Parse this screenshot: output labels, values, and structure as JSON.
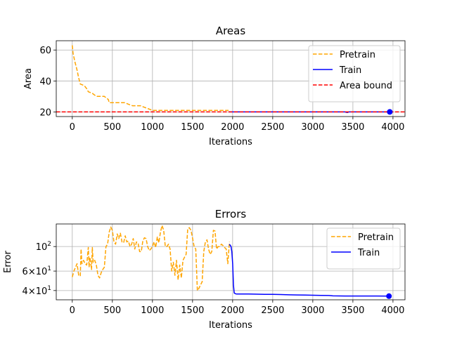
{
  "chart_data": [
    {
      "type": "line",
      "title": "Areas",
      "xlabel": "Iterations",
      "ylabel": "Area",
      "xlim": [
        -200,
        4150
      ],
      "ylim": [
        17,
        66
      ],
      "xticks": [
        0,
        500,
        1000,
        1500,
        2000,
        2500,
        3000,
        3500,
        4000
      ],
      "xtick_labels": [
        "0",
        "500",
        "1000",
        "1500",
        "2000",
        "2500",
        "3000",
        "3500",
        "4000"
      ],
      "yticks": [
        20,
        40,
        60
      ],
      "ytick_labels": [
        "20",
        "40",
        "60"
      ],
      "grid": true,
      "legend_position": "top-right",
      "series": [
        {
          "name": "Pretrain",
          "color": "#ffa500",
          "style": "dashed",
          "x": [
            0,
            10,
            30,
            60,
            80,
            100,
            150,
            180,
            200,
            250,
            300,
            350,
            400,
            450,
            460,
            500,
            550,
            600,
            650,
            700,
            750,
            800,
            850,
            900,
            950,
            1000,
            1100,
            1200,
            1400,
            1600,
            1800,
            1950
          ],
          "y": [
            63,
            58,
            53,
            47,
            42,
            38,
            37,
            35,
            33,
            32,
            30,
            30,
            30,
            28,
            26,
            26,
            26,
            26,
            26,
            25,
            24,
            24,
            24,
            23,
            22,
            21,
            21,
            21,
            21,
            21,
            21,
            21
          ]
        },
        {
          "name": "Train",
          "color": "#0000ff",
          "style": "solid",
          "x": [
            1950,
            2500,
            3000,
            3400,
            3430,
            3450,
            3500,
            3960
          ],
          "y": [
            20,
            20,
            20,
            20,
            19.6,
            20,
            20,
            20
          ],
          "end_marker": true
        },
        {
          "name": "Area bound",
          "color": "#ff0000",
          "style": "dashed",
          "hline": 20
        }
      ]
    },
    {
      "type": "line",
      "title": "Errors",
      "xlabel": "Iterations",
      "ylabel": "Error",
      "yscale": "log",
      "xlim": [
        -200,
        4150
      ],
      "ylim": [
        33,
        160
      ],
      "xticks": [
        0,
        500,
        1000,
        1500,
        2000,
        2500,
        3000,
        3500,
        4000
      ],
      "xtick_labels": [
        "0",
        "500",
        "1000",
        "1500",
        "2000",
        "2500",
        "3000",
        "3500",
        "4000"
      ],
      "yticks": [
        40,
        60,
        100
      ],
      "ytick_labels": [
        {
          "base": "4×10",
          "exp": "1"
        },
        {
          "base": "6×10",
          "exp": "1"
        },
        {
          "base": "10",
          "exp": "2"
        }
      ],
      "grid": true,
      "legend_position": "top-right",
      "series": [
        {
          "name": "Pretrain",
          "color": "#ffa500",
          "style": "dashed",
          "x": [
            0,
            20,
            40,
            60,
            80,
            100,
            110,
            120,
            140,
            160,
            180,
            200,
            210,
            220,
            240,
            250,
            260,
            280,
            300,
            320,
            340,
            360,
            380,
            400,
            420,
            440,
            460,
            480,
            500,
            520,
            540,
            560,
            580,
            600,
            620,
            640,
            660,
            680,
            700,
            720,
            740,
            760,
            780,
            800,
            820,
            840,
            860,
            880,
            900,
            920,
            940,
            960,
            980,
            1000,
            1020,
            1040,
            1060,
            1080,
            1100,
            1120,
            1140,
            1160,
            1180,
            1200,
            1220,
            1240,
            1260,
            1280,
            1300,
            1320,
            1340,
            1360,
            1380,
            1400,
            1420,
            1440,
            1460,
            1480,
            1500,
            1520,
            1540,
            1560,
            1580,
            1600,
            1620,
            1640,
            1660,
            1680,
            1700,
            1720,
            1740,
            1760,
            1780,
            1800,
            1820,
            1840,
            1860,
            1880,
            1900,
            1920,
            1940,
            1960
          ],
          "y": [
            53,
            60,
            65,
            70,
            55,
            54,
            95,
            70,
            75,
            70,
            68,
            98,
            65,
            80,
            62,
            98,
            72,
            75,
            68,
            55,
            52,
            58,
            62,
            65,
            100,
            105,
            135,
            150,
            140,
            110,
            105,
            130,
            118,
            132,
            110,
            108,
            125,
            110,
            112,
            100,
            105,
            118,
            95,
            110,
            108,
            90,
            90,
            112,
            120,
            118,
            100,
            92,
            95,
            100,
            110,
            98,
            122,
            108,
            135,
            155,
            140,
            100,
            100,
            105,
            95,
            60,
            72,
            55,
            75,
            50,
            68,
            52,
            75,
            80,
            85,
            145,
            148,
            140,
            120,
            100,
            95,
            40,
            42,
            45,
            48,
            90,
            110,
            115,
            95,
            85,
            90,
            140,
            138,
            95,
            100,
            100,
            105,
            102,
            98,
            95,
            70,
            110
          ]
        },
        {
          "name": "Train",
          "color": "#0000ff",
          "style": "solid",
          "x": [
            1960,
            1980,
            1990,
            2000,
            2010,
            2020,
            2040,
            2060,
            2100,
            2200,
            2300,
            2400,
            2500,
            2600,
            2700,
            2800,
            2900,
            3000,
            3100,
            3200,
            3250,
            3400,
            3600,
            3800,
            3950
          ],
          "y": [
            105,
            100,
            90,
            70,
            45,
            38,
            37.3,
            37.2,
            37.2,
            37.2,
            37.1,
            37,
            37,
            36.8,
            36.6,
            36.5,
            36.4,
            36.3,
            36.2,
            36.1,
            35.8,
            35.7,
            35.7,
            35.7,
            35.6
          ],
          "end_marker": true
        }
      ]
    }
  ]
}
